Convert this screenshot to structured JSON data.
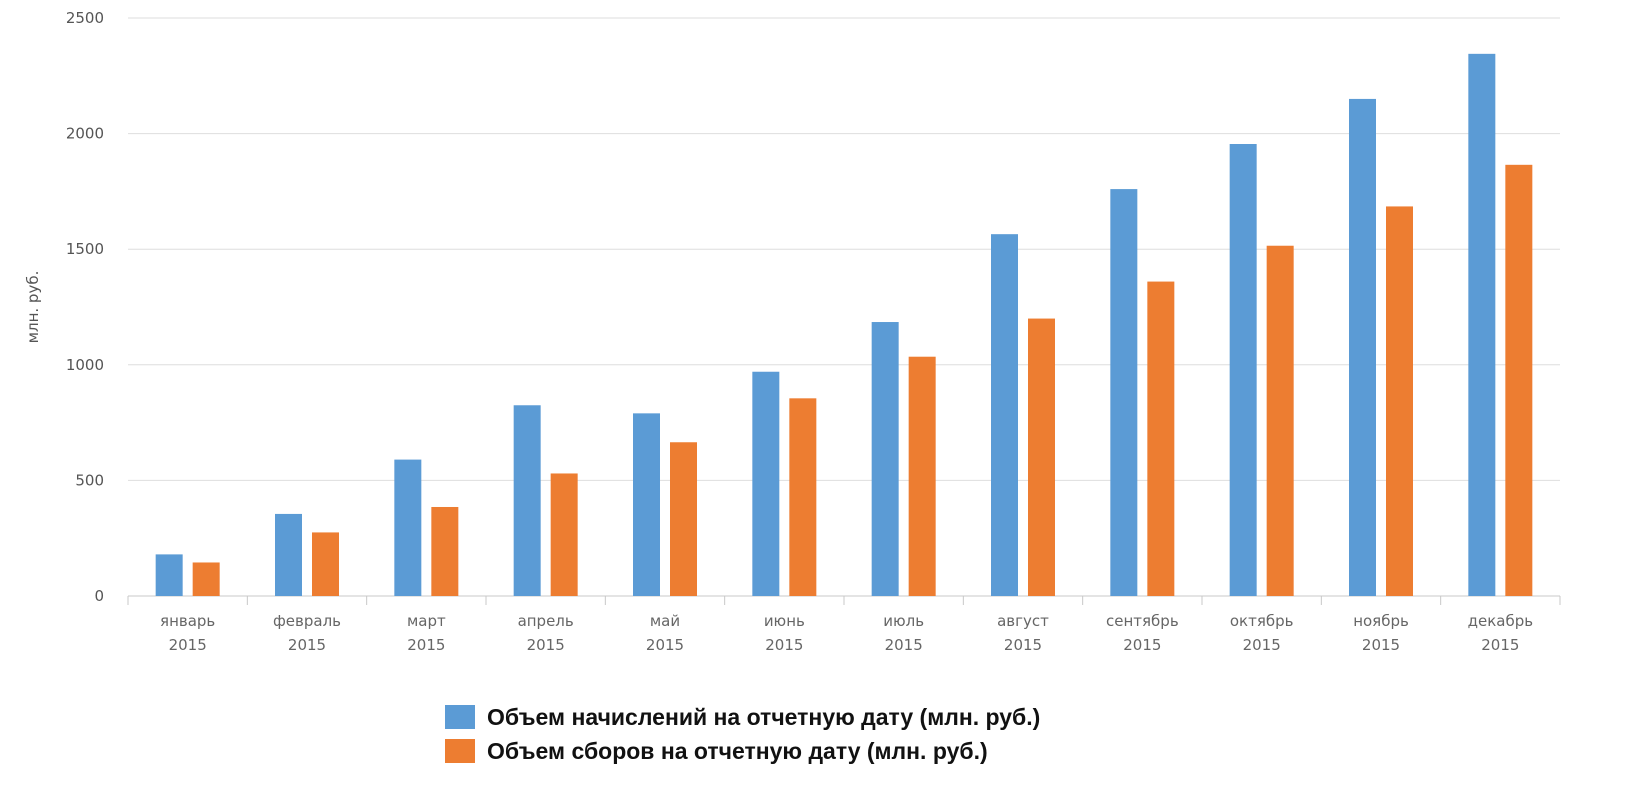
{
  "chart_data": {
    "type": "bar",
    "ylabel": "млн. руб.",
    "ylim": [
      0,
      2500
    ],
    "yticks": [
      "0",
      "500",
      "1000",
      "1500",
      "2000",
      "2500"
    ],
    "grid": true,
    "legend_position": "bottom",
    "categories": [
      [
        "январь",
        "2015"
      ],
      [
        "февраль",
        "2015"
      ],
      [
        "март",
        "2015"
      ],
      [
        "апрель",
        "2015"
      ],
      [
        "май",
        "2015"
      ],
      [
        "июнь",
        "2015"
      ],
      [
        "июль",
        "2015"
      ],
      [
        "август",
        "2015"
      ],
      [
        "сентябрь",
        "2015"
      ],
      [
        "октябрь",
        "2015"
      ],
      [
        "ноябрь",
        "2015"
      ],
      [
        "декабрь",
        "2015"
      ]
    ],
    "series": [
      {
        "name": "Объем начислений на отчетную дату (млн. руб.)",
        "color": "#5b9bd5",
        "values": [
          180,
          355,
          590,
          825,
          790,
          970,
          1185,
          1565,
          1760,
          1955,
          2150,
          2345
        ]
      },
      {
        "name": "Объем сборов на отчетную дату (млн. руб.)",
        "color": "#ed7d31",
        "values": [
          145,
          275,
          385,
          530,
          665,
          855,
          1035,
          1200,
          1360,
          1515,
          1685,
          1865
        ]
      }
    ]
  }
}
